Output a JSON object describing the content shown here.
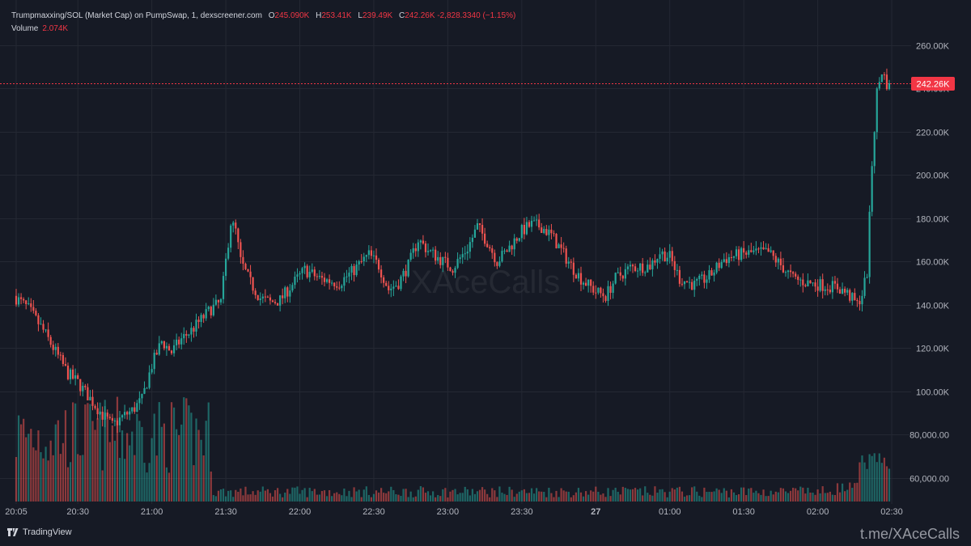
{
  "header": {
    "title": "Trumpmaxxing/SOL (Market Cap) on PumpSwap, 1, dexscreener.com",
    "open_label": "O",
    "open": "245.090K",
    "high_label": "H",
    "high": "253.41K",
    "low_label": "L",
    "low": "239.49K",
    "close_label": "C",
    "close": "242.26K",
    "change": "-2,828.3340 (−1.15%)",
    "volume_label": "Volume",
    "volume": "2.074K"
  },
  "watermark": "XAceCalls",
  "footer": {
    "brand": "TradingView",
    "channel": "t.me/XAceCalls"
  },
  "colors": {
    "background": "#161a25",
    "up": "#26a69a",
    "down": "#ef5350",
    "price_line": "#f23645",
    "grid": "#242833"
  },
  "chart_data": {
    "type": "candlestick",
    "title": "Trumpmaxxing/SOL (Market Cap) on PumpSwap, 1, dexscreener.com",
    "interval": "1",
    "y_tick_labels": [
      "260.00K",
      "240.00K",
      "220.00K",
      "200.00K",
      "180.00K",
      "160.00K",
      "140.00K",
      "120.00K",
      "100.00K",
      "80,000.00",
      "60,000.00"
    ],
    "y_ticks": [
      260000,
      240000,
      220000,
      200000,
      180000,
      160000,
      140000,
      120000,
      100000,
      80000,
      60000
    ],
    "x_tick_labels": [
      "20:05",
      "20:30",
      "21:00",
      "21:30",
      "22:00",
      "22:30",
      "23:00",
      "23:30",
      "27",
      "01:00",
      "01:30",
      "02:00",
      "02:30"
    ],
    "current_price": 242260,
    "current_price_label": "242.26K",
    "grid": true,
    "series": [
      {
        "name": "Market Cap",
        "approx_path": [
          [
            0,
            144000
          ],
          [
            6,
            138000
          ],
          [
            12,
            128000
          ],
          [
            18,
            116000
          ],
          [
            22,
            108000
          ],
          [
            26,
            104000
          ],
          [
            32,
            95000
          ],
          [
            36,
            89000
          ],
          [
            40,
            84000
          ],
          [
            44,
            88000
          ],
          [
            48,
            91000
          ],
          [
            52,
            96000
          ],
          [
            56,
            112000
          ],
          [
            60,
            123000
          ],
          [
            64,
            118000
          ],
          [
            68,
            124000
          ],
          [
            72,
            128000
          ],
          [
            76,
            133000
          ],
          [
            80,
            138000
          ],
          [
            84,
            141000
          ],
          [
            86,
            160000
          ],
          [
            88,
            178000
          ],
          [
            90,
            174000
          ],
          [
            92,
            160000
          ],
          [
            96,
            150000
          ],
          [
            100,
            143000
          ],
          [
            104,
            141000
          ],
          [
            108,
            142000
          ],
          [
            112,
            148000
          ],
          [
            118,
            156000
          ],
          [
            124,
            152000
          ],
          [
            132,
            150000
          ],
          [
            138,
            156000
          ],
          [
            144,
            163000
          ],
          [
            148,
            158000
          ],
          [
            152,
            147000
          ],
          [
            156,
            150000
          ],
          [
            160,
            158000
          ],
          [
            164,
            170000
          ],
          [
            168,
            165000
          ],
          [
            174,
            160000
          ],
          [
            178,
            157000
          ],
          [
            184,
            166000
          ],
          [
            188,
            176000
          ],
          [
            192,
            169000
          ],
          [
            196,
            160000
          ],
          [
            200,
            165000
          ],
          [
            206,
            174000
          ],
          [
            210,
            177000
          ],
          [
            214,
            176000
          ],
          [
            218,
            172000
          ],
          [
            222,
            165000
          ],
          [
            226,
            158000
          ],
          [
            230,
            152000
          ],
          [
            236,
            146000
          ],
          [
            240,
            144000
          ],
          [
            244,
            152000
          ],
          [
            250,
            157000
          ],
          [
            258,
            158000
          ],
          [
            262,
            164000
          ],
          [
            266,
            162000
          ],
          [
            270,
            152000
          ],
          [
            276,
            149000
          ],
          [
            282,
            153000
          ],
          [
            288,
            161000
          ],
          [
            294,
            163000
          ],
          [
            300,
            164000
          ],
          [
            306,
            164000
          ],
          [
            312,
            157000
          ],
          [
            316,
            152000
          ],
          [
            322,
            150000
          ],
          [
            328,
            149000
          ],
          [
            334,
            148000
          ],
          [
            338,
            145000
          ],
          [
            342,
            140000
          ],
          [
            344,
            145000
          ],
          [
            346,
            155000
          ],
          [
            348,
            205000
          ],
          [
            350,
            238000
          ],
          [
            352,
            248000
          ],
          [
            354,
            242260
          ]
        ]
      },
      {
        "name": "Volume",
        "volume_label": "2.074K"
      }
    ]
  }
}
